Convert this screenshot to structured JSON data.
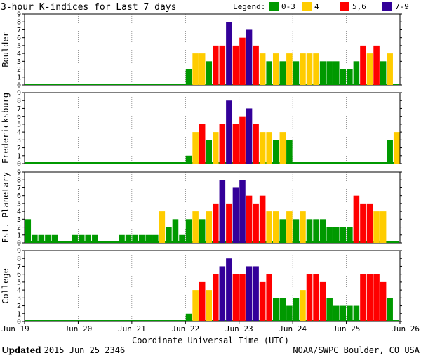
{
  "chart_data": {
    "type": "bar",
    "title": "3-hour K-indices for Last 7 days",
    "legend": {
      "label": "Legend:",
      "entries": [
        {
          "label": "0-3",
          "color": "#009900",
          "min": 0,
          "max": 3
        },
        {
          "label": "4",
          "color": "#ffcc00",
          "min": 4,
          "max": 4
        },
        {
          "label": "5,6",
          "color": "#ff0000",
          "min": 5,
          "max": 6
        },
        {
          "label": "7-9",
          "color": "#330099",
          "min": 7,
          "max": 9
        }
      ]
    },
    "xlabel": "Coordinate Universal Time (UTC)",
    "x_tick_labels": [
      "Jun 19",
      "Jun 20",
      "Jun 21",
      "Jun 22",
      "Jun 23",
      "Jun 24",
      "Jun 25",
      "Jun 26"
    ],
    "ylim": [
      0,
      9
    ],
    "y_ticks": [
      0,
      1,
      2,
      3,
      4,
      5,
      6,
      7,
      8,
      9
    ],
    "bins_per_day": 8,
    "days": 7,
    "panels": [
      {
        "name": "Boulder",
        "values": [
          0,
          0,
          0,
          0,
          0,
          0,
          0,
          0,
          0,
          0,
          0,
          0,
          0,
          0,
          0,
          0,
          0,
          0,
          0,
          0,
          0,
          0,
          0,
          0,
          2,
          4,
          4,
          3,
          5,
          5,
          8,
          5,
          6,
          7,
          5,
          4,
          3,
          4,
          3,
          4,
          3,
          4,
          4,
          4,
          3,
          3,
          3,
          2,
          2,
          3,
          5,
          4,
          5,
          3,
          4,
          0
        ]
      },
      {
        "name": "Fredericksburg",
        "values": [
          0,
          0,
          0,
          0,
          0,
          0,
          0,
          0,
          0,
          0,
          0,
          0,
          0,
          0,
          0,
          0,
          0,
          0,
          0,
          0,
          0,
          0,
          0,
          0,
          1,
          4,
          5,
          3,
          4,
          5,
          8,
          5,
          6,
          7,
          5,
          4,
          4,
          3,
          4,
          3,
          0,
          0,
          0,
          0,
          0,
          0,
          0,
          0,
          0,
          0,
          0,
          0,
          0,
          0,
          3,
          4
        ]
      },
      {
        "name": "Est. Planetary",
        "values": [
          3,
          1,
          1,
          1,
          1,
          0,
          0,
          1,
          1,
          1,
          1,
          0,
          0,
          0,
          1,
          1,
          1,
          1,
          1,
          1,
          4,
          2,
          3,
          1,
          3,
          4,
          3,
          4,
          5,
          8,
          5,
          7,
          8,
          6,
          5,
          6,
          4,
          4,
          3,
          4,
          3,
          4,
          3,
          3,
          3,
          2,
          2,
          2,
          2,
          6,
          5,
          5,
          4,
          4,
          0,
          0
        ]
      },
      {
        "name": "College",
        "values": [
          0,
          0,
          0,
          0,
          0,
          0,
          0,
          0,
          0,
          0,
          0,
          0,
          0,
          0,
          0,
          0,
          0,
          0,
          0,
          0,
          0,
          0,
          0,
          0,
          1,
          4,
          5,
          4,
          6,
          7,
          8,
          6,
          6,
          7,
          7,
          5,
          6,
          3,
          3,
          2,
          3,
          4,
          6,
          6,
          5,
          3,
          2,
          2,
          2,
          2,
          6,
          6,
          6,
          5,
          3,
          0
        ]
      }
    ]
  },
  "footer": {
    "updated_label": "Updated",
    "updated_value": "2015 Jun 25 2346",
    "credit": "NOAA/SWPC Boulder, CO USA"
  }
}
